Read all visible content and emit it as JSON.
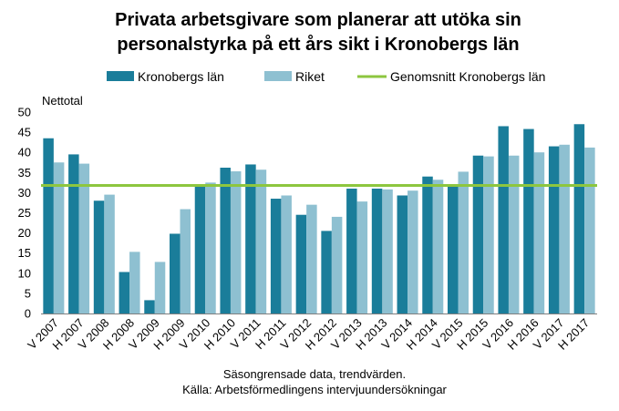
{
  "chart_data": {
    "type": "bar",
    "title": [
      "Privata arbetsgivare som planerar att utöka sin",
      "personalstyrka på ett års sikt i Kronobergs län"
    ],
    "ylabel": "Nettotal",
    "ylim": [
      0,
      50
    ],
    "yticks": [
      0,
      5,
      10,
      15,
      20,
      25,
      30,
      35,
      40,
      45,
      50
    ],
    "grid": false,
    "legend_position": "top",
    "categories": [
      "V 2007",
      "H 2007",
      "V 2008",
      "H 2008",
      "V 2009",
      "H 2009",
      "V 2010",
      "H 2010",
      "V 2011",
      "H 2011",
      "V 2012",
      "H 2012",
      "V 2013",
      "H 2013",
      "V 2014",
      "H 2014",
      "V 2015",
      "H 2015",
      "V 2016",
      "H 2016",
      "V 2017",
      "H 2017"
    ],
    "series": [
      {
        "name": "Kronobergs län",
        "color": "#1a7d9a",
        "values": [
          43.5,
          39.5,
          28,
          10.3,
          3.3,
          19.8,
          31.8,
          36.2,
          37,
          28.5,
          24.5,
          20.5,
          31,
          31,
          29.3,
          34,
          32,
          39.2,
          46.5,
          45.8,
          41.5,
          47
        ]
      },
      {
        "name": "Riket",
        "color": "#8ec0d1",
        "values": [
          37.5,
          37.2,
          29.5,
          15.3,
          12.8,
          25.9,
          32.5,
          35.3,
          35.7,
          29.3,
          27,
          24,
          27.8,
          30.8,
          30.5,
          33.2,
          35.2,
          39,
          39.2,
          40,
          41.9,
          41.2
        ]
      }
    ],
    "reference_line": {
      "name": "Genomsnitt Kronobergs län",
      "color": "#8dc63f",
      "value": 31.8
    },
    "footer": [
      "Säsongrensade data, trendvärden.",
      "Källa: Arbetsförmedlingens intervjuundersökningar"
    ]
  }
}
